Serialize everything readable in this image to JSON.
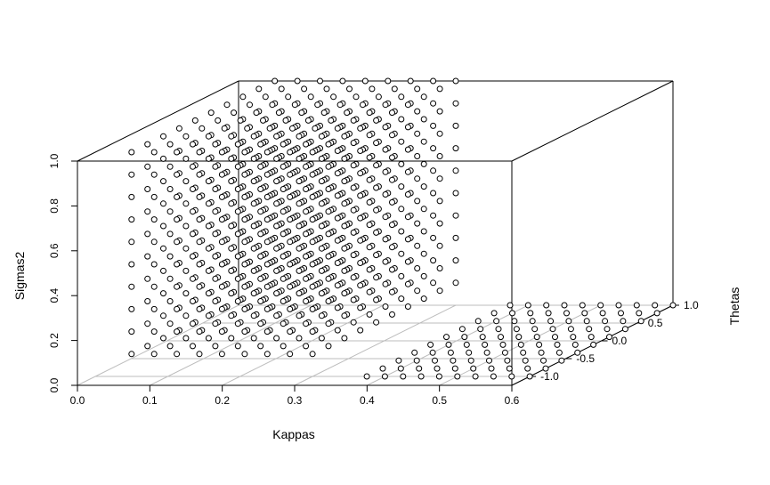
{
  "chart_data": {
    "type": "scatter",
    "projection": "3d-box",
    "axes": {
      "x": {
        "label": "Kappas",
        "range": [
          0,
          0.6
        ],
        "ticks": [
          "0.0",
          "0.1",
          "0.2",
          "0.3",
          "0.4",
          "0.5",
          "0.6"
        ]
      },
      "z": {
        "label": "Sigmas2",
        "range": [
          0,
          1
        ],
        "ticks": [
          "0.0",
          "0.2",
          "0.4",
          "0.6",
          "0.8",
          "1.0"
        ]
      },
      "y": {
        "label": "Thetas",
        "range": [
          -1.25,
          1.0
        ],
        "ticks": [
          "-1.0",
          "-0.5",
          "0.0",
          "0.5",
          "1.0"
        ]
      }
    },
    "grid": "floor",
    "marker": "open-circle",
    "series": [
      {
        "kappa": [
          0.05,
          0.3
        ],
        "theta_steps": {
          "start": -1.0,
          "end": 1.0,
          "count": 10
        },
        "sigma2_values": [
          0.1,
          0.2,
          0.3,
          0.4,
          0.5,
          0.6,
          0.7,
          0.8,
          0.9,
          1.0
        ],
        "kappa_count": 9
      },
      {
        "kappa": [
          0.375,
          0.6
        ],
        "theta_steps": {
          "start": -1.0,
          "end": 1.0,
          "count": 10
        },
        "sigma2_values": [
          0.0
        ],
        "kappa_count": 10
      }
    ]
  }
}
